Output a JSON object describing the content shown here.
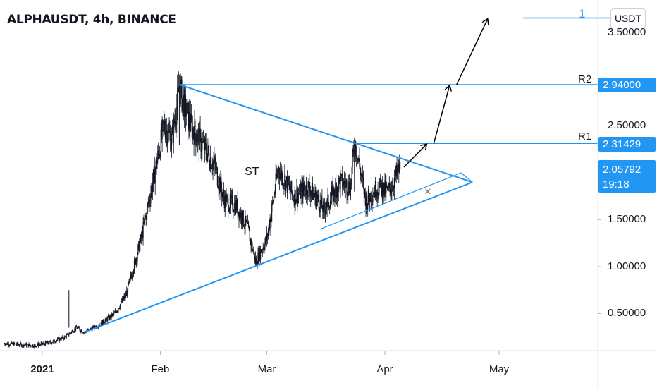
{
  "header": {
    "symbol_title": "ALPHAUSDT, 4h, BINANCE",
    "currency": "USDT"
  },
  "price_axis": {
    "ticks": [
      "3.50000",
      "2.50000",
      "1.50000",
      "1.00000",
      "0.50000"
    ],
    "badges": {
      "r2_price": "2.94000",
      "r1_price": "2.31429",
      "last_price": "2.05792",
      "countdown": "19:18"
    }
  },
  "time_axis": {
    "ticks": [
      {
        "label": "2021",
        "bold": true
      },
      {
        "label": "Feb",
        "bold": false
      },
      {
        "label": "Mar",
        "bold": false
      },
      {
        "label": "Apr",
        "bold": false
      },
      {
        "label": "May",
        "bold": false
      }
    ]
  },
  "annotations": {
    "r2_label": "R2",
    "r1_label": "R1",
    "target_label": "1",
    "pattern_label": "ST",
    "invalid_mark": "×"
  },
  "colors": {
    "line_accent": "#2196f3",
    "candle": "#131722",
    "arrow": "#000000",
    "grid": "#e8eaed"
  },
  "chart_data": {
    "type": "line",
    "title": "ALPHAUSDT, 4h, BINANCE",
    "xlabel": "",
    "ylabel": "",
    "x_axis_ticks": [
      "2021",
      "Feb",
      "Mar",
      "Apr",
      "May"
    ],
    "y_axis_ticks": [
      0.5,
      1.0,
      1.5,
      2.5,
      3.5
    ],
    "ylim": [
      0.1,
      3.9
    ],
    "x_range": [
      "2020-12-22",
      "2021-05-25"
    ],
    "series": [
      {
        "name": "",
        "x": [
          "2020-12-22",
          "2020-12-26",
          "2020-12-30",
          "2021-01-03",
          "2021-01-07",
          "2021-01-10",
          "2021-01-12",
          "2021-01-16",
          "2021-01-20",
          "2021-01-23",
          "2021-01-25",
          "2021-01-27",
          "2021-01-30",
          "2021-02-02",
          "2021-02-04",
          "2021-02-06",
          "2021-02-09",
          "2021-02-12",
          "2021-02-15",
          "2021-02-18",
          "2021-02-21",
          "2021-02-24",
          "2021-02-26",
          "2021-03-01",
          "2021-03-04",
          "2021-03-08",
          "2021-03-12",
          "2021-03-16",
          "2021-03-20",
          "2021-03-23",
          "2021-03-24",
          "2021-03-27",
          "2021-03-30",
          "2021-04-02",
          "2021-04-05"
        ],
        "values": [
          0.18,
          0.17,
          0.16,
          0.19,
          0.25,
          0.35,
          0.3,
          0.38,
          0.5,
          0.7,
          1.0,
          1.3,
          1.9,
          2.5,
          2.35,
          2.9,
          2.5,
          2.3,
          2.1,
          1.7,
          1.65,
          1.4,
          1.05,
          1.3,
          2.05,
          1.75,
          1.85,
          1.6,
          1.9,
          1.85,
          2.35,
          1.7,
          1.85,
          1.8,
          2.06
        ]
      }
    ],
    "trendlines": [
      {
        "name": "upper",
        "from": {
          "x": "2021-02-06",
          "y": 2.94
        },
        "to": {
          "x": "2021-04-24",
          "y": 1.9
        }
      },
      {
        "name": "lower",
        "from": {
          "x": "2021-01-12",
          "y": 0.3
        },
        "to": {
          "x": "2021-04-24",
          "y": 1.9
        }
      },
      {
        "name": "inner",
        "from": {
          "x": "2021-03-15",
          "y": 1.4
        },
        "to": {
          "x": "2021-04-21",
          "y": 2.0
        }
      }
    ],
    "levels": [
      {
        "label": "R2",
        "y": 2.94
      },
      {
        "label": "R1",
        "y": 2.31429
      },
      {
        "label": "1",
        "y": 3.65
      }
    ],
    "projection_points": [
      {
        "x": "2021-04-12",
        "y": 2.31429
      },
      {
        "x": "2021-04-18",
        "y": 2.94
      },
      {
        "x": "2021-04-28",
        "y": 3.65
      }
    ],
    "invalid_mark_point": {
      "x": "2021-04-12",
      "y": 1.8
    },
    "last_price": 2.05792
  }
}
